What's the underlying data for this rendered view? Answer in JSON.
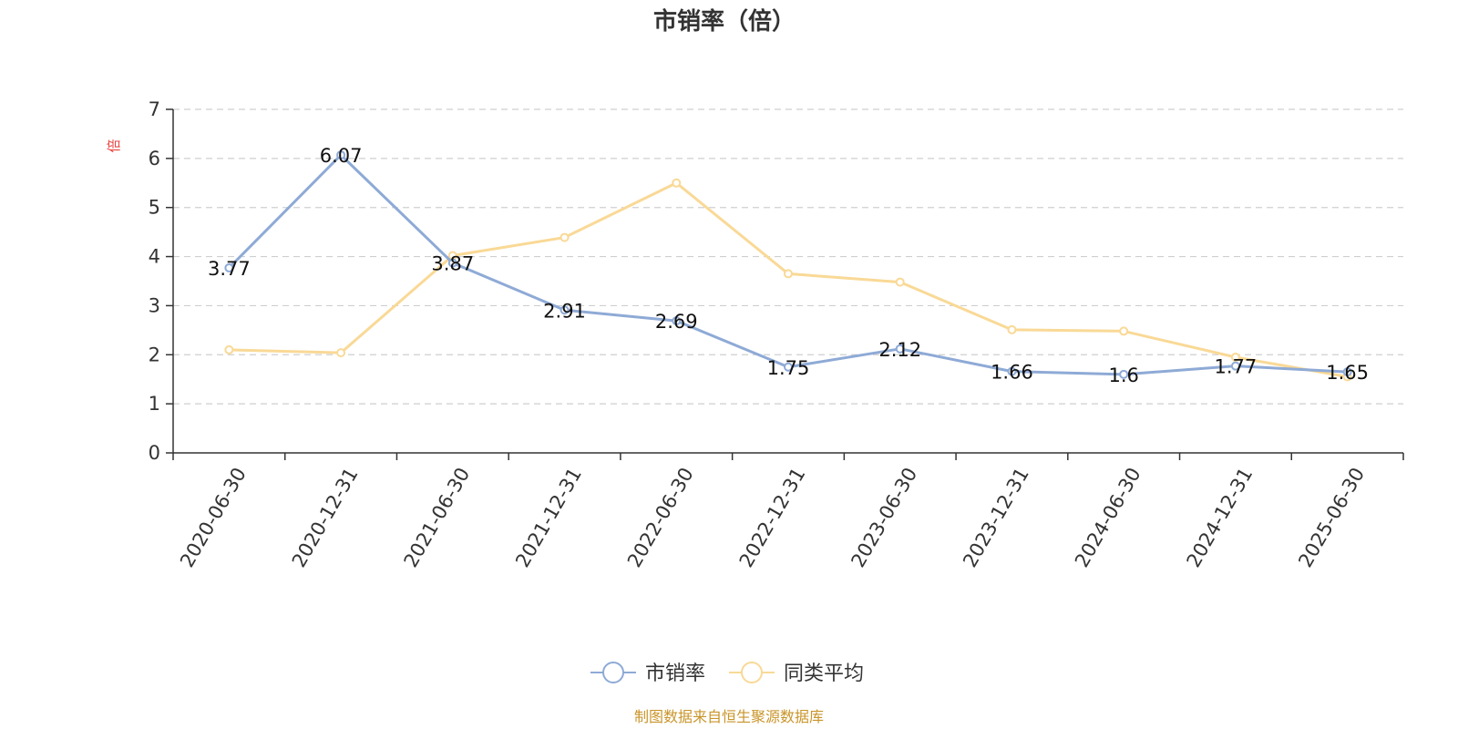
{
  "chart_data": {
    "type": "line",
    "title": "市销率（倍）",
    "ylabel": "倍",
    "xlabel": "",
    "ylim": [
      0,
      7
    ],
    "yticks": [
      0,
      1,
      2,
      3,
      4,
      5,
      6,
      7
    ],
    "grid": true,
    "legend_position": "bottom",
    "categories": [
      "2020-06-30",
      "2020-12-31",
      "2021-06-30",
      "2021-12-31",
      "2022-06-30",
      "2022-12-31",
      "2023-06-30",
      "2023-12-31",
      "2024-06-30",
      "2024-12-31",
      "2025-06-30"
    ],
    "series": [
      {
        "name": "市销率",
        "color": "#8eaad6",
        "values": [
          3.77,
          6.07,
          3.87,
          2.91,
          2.69,
          1.75,
          2.12,
          1.66,
          1.6,
          1.77,
          1.65
        ],
        "labels": [
          "3.77",
          "6.07",
          "3.87",
          "2.91",
          "2.69",
          "1.75",
          "2.12",
          "1.66",
          "1.6",
          "1.77",
          "1.65"
        ]
      },
      {
        "name": "同类平均",
        "color": "#f9d996",
        "values": [
          2.1,
          2.04,
          4.02,
          4.39,
          5.5,
          3.65,
          3.48,
          2.51,
          2.48,
          1.95,
          1.55
        ]
      }
    ],
    "source": "制图数据来自恒生聚源数据库"
  }
}
